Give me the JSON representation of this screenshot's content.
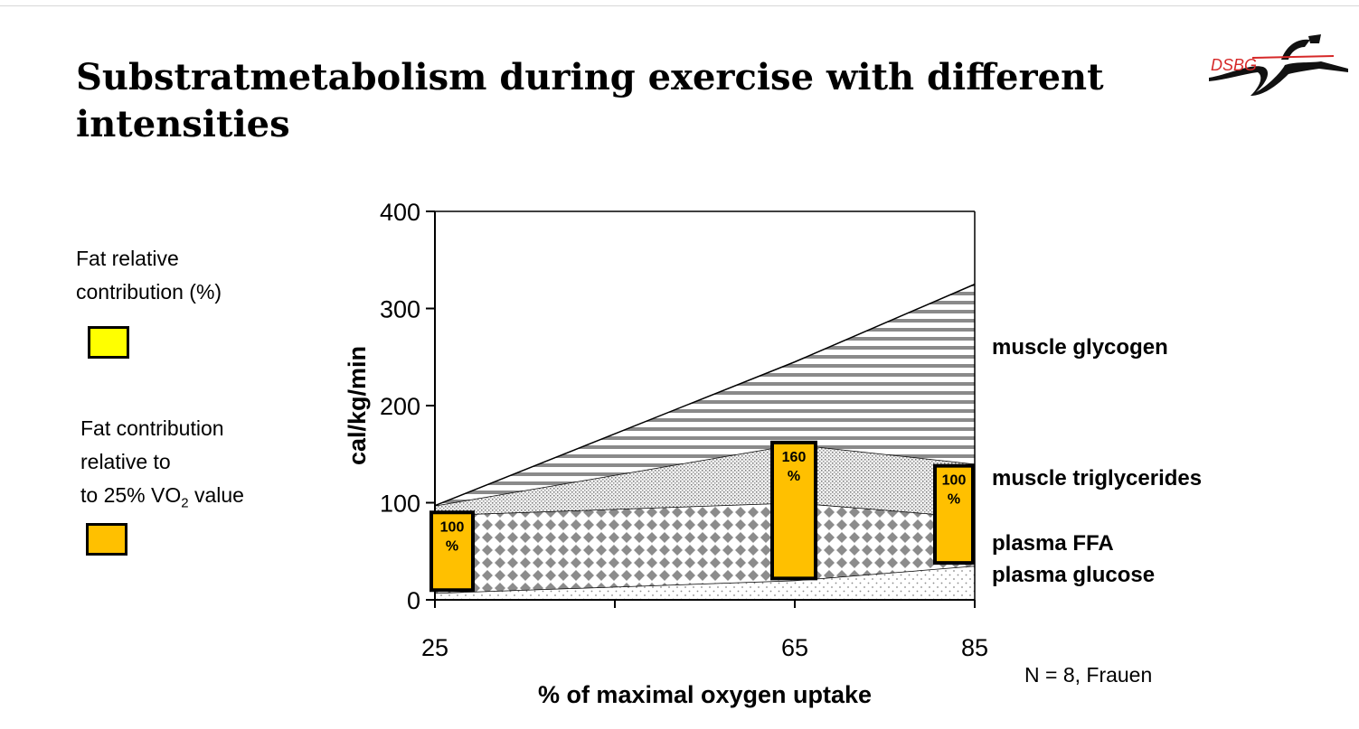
{
  "title": "Substratmetabolism during exercise with different intensities",
  "logo": {
    "text": "DSBG",
    "icon": "running-figure-logo",
    "accent": "#d62828"
  },
  "legend": {
    "relative_label_lines": [
      "Fat relative",
      "contribution (%)"
    ],
    "relative_color": "#ffff00",
    "vo2_label_lines": [
      "Fat contribution",
      "relative to"
    ],
    "vo2_label_prefix": "to 25% VO",
    "vo2_label_sub": "2",
    "vo2_label_suffix": " value",
    "vo2_color": "#ffc000"
  },
  "footnote": "N = 8, Frauen",
  "chart_data": {
    "type": "area",
    "stacked": true,
    "x": [
      25,
      65,
      85
    ],
    "xlabel": "% of maximal oxygen uptake",
    "ylabel": "cal/kg/min",
    "xlim": [
      25,
      85
    ],
    "ylim": [
      0,
      400
    ],
    "x_ticks": [
      25,
      65,
      85
    ],
    "y_ticks": [
      0,
      100,
      200,
      300,
      400
    ],
    "series": [
      {
        "name": "plasma glucose",
        "values": [
          7,
          20,
          35
        ],
        "pattern": "dots"
      },
      {
        "name": "plasma FFA",
        "values": [
          80,
          80,
          50
        ],
        "pattern": "diamonds"
      },
      {
        "name": "muscle triglycerides",
        "values": [
          10,
          60,
          55
        ],
        "pattern": "stipple"
      },
      {
        "name": "muscle glycogen",
        "values": [
          0,
          85,
          185
        ],
        "pattern": "horizontal-lines"
      }
    ],
    "bar_annotations": [
      {
        "x": 25,
        "label_top": "100",
        "label_bottom": "%",
        "y_from": 10,
        "y_to": 90
      },
      {
        "x": 65,
        "label_top": "160",
        "label_bottom": "%",
        "y_from": 22,
        "y_to": 162
      },
      {
        "x": 85,
        "label_top": "100",
        "label_bottom": "%",
        "y_from": 38,
        "y_to": 138
      }
    ],
    "annotation_color": "#ffc000"
  }
}
